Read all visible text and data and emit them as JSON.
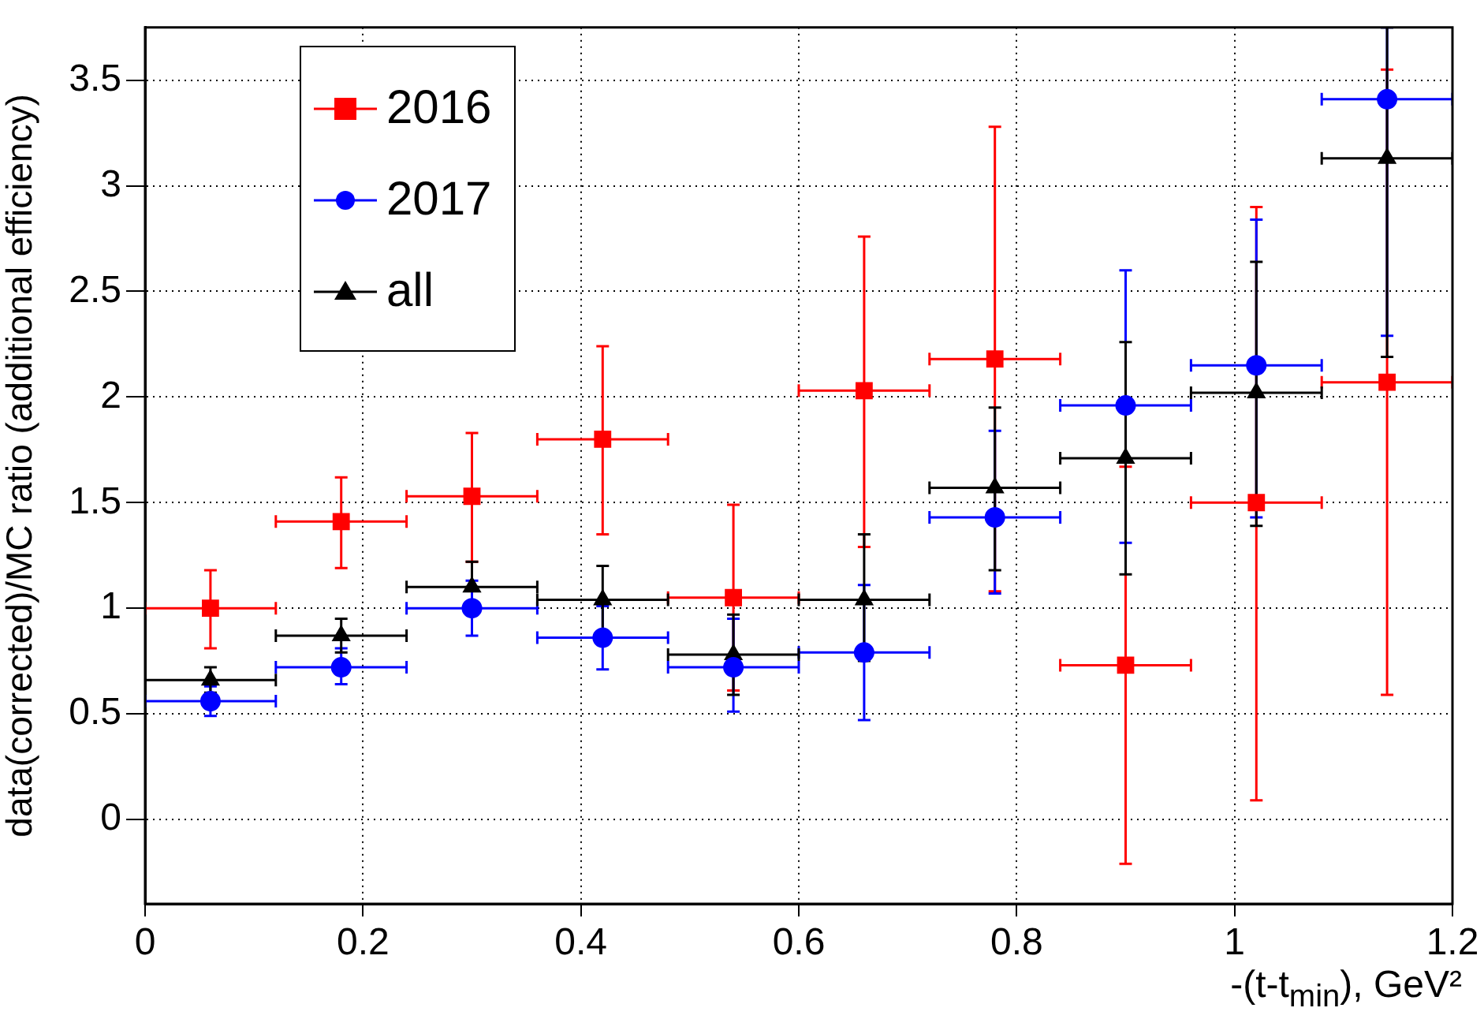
{
  "chart_data": {
    "type": "scatter",
    "xlabel": "-(t-t$_{min}$), GeV²",
    "ylabel": "data(corrected)/MC ratio (additional efficiency)",
    "xlim": [
      0,
      1.2
    ],
    "xticks": [
      0,
      0.2,
      0.4,
      0.6,
      0.8,
      1,
      1.2
    ],
    "ylim": [
      -0.4,
      3.75
    ],
    "yticks": [
      0,
      0.5,
      1,
      1.5,
      2,
      2.5,
      3,
      3.5
    ],
    "grid": true,
    "legend": "top left",
    "x": [
      0.06,
      0.18,
      0.3,
      0.42,
      0.54,
      0.66,
      0.78,
      0.9,
      1.02,
      1.14
    ],
    "series": [
      {
        "name": "2016",
        "color": "#ff0000",
        "marker": "square",
        "values": [
          1.0,
          1.41,
          1.53,
          1.8,
          1.05,
          2.03,
          2.18,
          0.73,
          1.5,
          2.07
        ],
        "errors": [
          [
            0.81,
            1.18
          ],
          [
            1.19,
            1.62
          ],
          [
            1.22,
            1.83
          ],
          [
            1.35,
            2.24
          ],
          [
            0.61,
            1.49
          ],
          [
            1.29,
            2.76
          ],
          [
            1.08,
            3.28
          ],
          [
            -0.21,
            1.67
          ],
          [
            0.09,
            2.9
          ],
          [
            0.59,
            3.55
          ]
        ],
        "xerrors": [
          0.06,
          0.06,
          0.06,
          0.06,
          0.06,
          0.06,
          0.06,
          0.06,
          0.06,
          0.06
        ]
      },
      {
        "name": "2017",
        "color": "#0000ff",
        "marker": "circle",
        "values": [
          0.56,
          0.72,
          1.0,
          0.86,
          0.72,
          0.79,
          1.43,
          1.96,
          2.15,
          3.41
        ],
        "errors": [
          [
            0.49,
            0.63
          ],
          [
            0.64,
            0.81
          ],
          [
            0.87,
            1.13
          ],
          [
            0.71,
            1.01
          ],
          [
            0.51,
            0.95
          ],
          [
            0.47,
            1.11
          ],
          [
            1.07,
            1.84
          ],
          [
            1.31,
            2.6
          ],
          [
            1.43,
            2.84
          ],
          [
            2.29,
            3.75
          ]
        ],
        "xerrors": [
          0.06,
          0.06,
          0.06,
          0.06,
          0.06,
          0.06,
          0.06,
          0.06,
          0.06,
          0.06
        ]
      },
      {
        "name": "all",
        "color": "#000000",
        "marker": "triangle",
        "values": [
          0.66,
          0.87,
          1.1,
          1.04,
          0.78,
          1.04,
          1.57,
          1.71,
          2.02,
          3.13
        ],
        "errors": [
          [
            0.6,
            0.72
          ],
          [
            0.79,
            0.95
          ],
          [
            1.1,
            1.22
          ],
          [
            0.88,
            1.2
          ],
          [
            0.59,
            0.97
          ],
          [
            0.75,
            1.35
          ],
          [
            1.18,
            1.95
          ],
          [
            1.16,
            2.26
          ],
          [
            1.39,
            2.64
          ],
          [
            2.19,
            3.75
          ]
        ],
        "xerrors": [
          0.06,
          0.06,
          0.06,
          0.06,
          0.06,
          0.06,
          0.06,
          0.06,
          0.06,
          0.06
        ]
      }
    ]
  }
}
